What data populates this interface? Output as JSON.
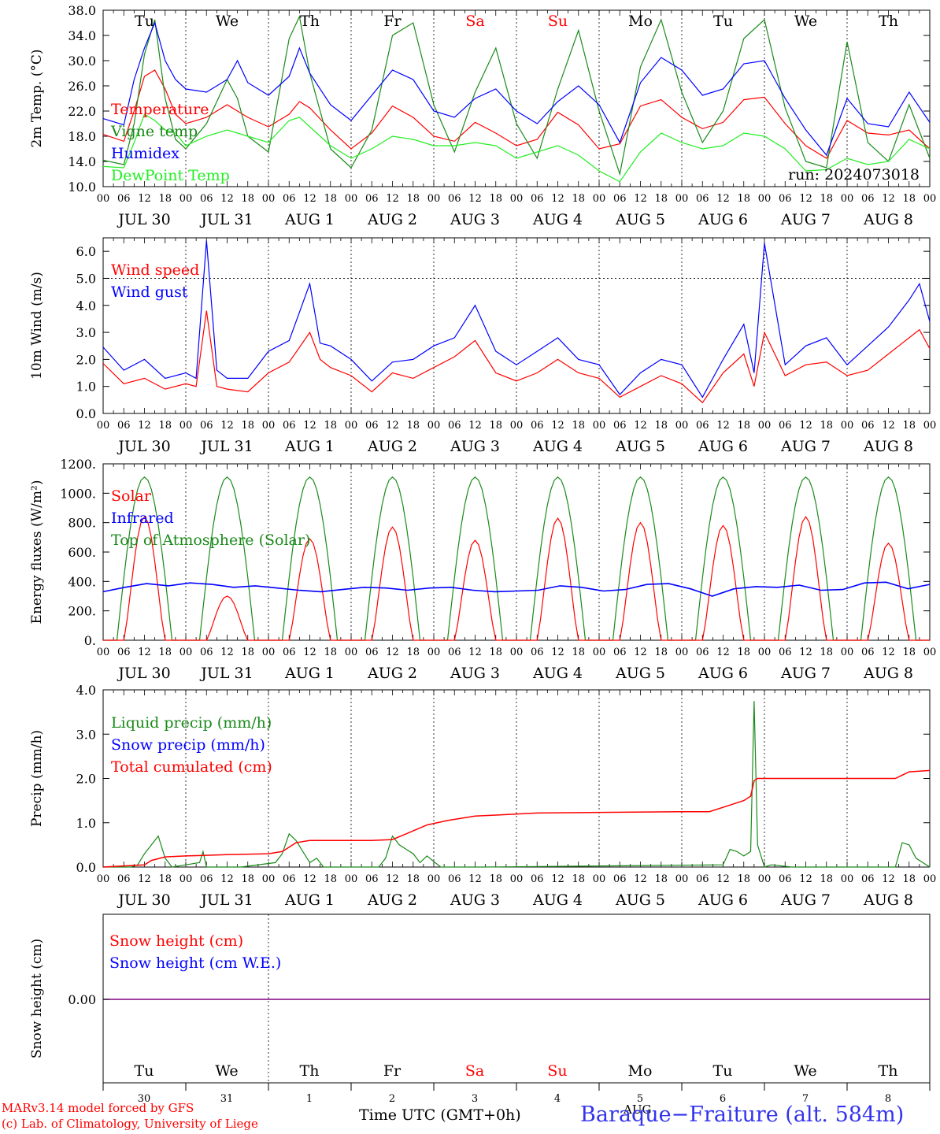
{
  "footer": {
    "credit_line1": "MARv3.14 model forced by GFS",
    "credit_line2": "(c) Lab. of Climatology, University of Liege",
    "xlabel": "Time UTC (GMT+0h)",
    "station": "Baraque−Fraiture (alt. 584m)",
    "month_label": "AUG"
  },
  "colors": {
    "red": "#ff0000",
    "green": "#1a8a1a",
    "blue": "#0000ff",
    "lightgreen": "#22ee22",
    "purple": "#800080"
  },
  "chart_data": [
    {
      "type": "line",
      "ylabel": "2m Temp. (°C)",
      "ylim": [
        10,
        38
      ],
      "yticks": [
        "10.0",
        "14.0",
        "18.0",
        "22.0",
        "26.0",
        "30.0",
        "34.0",
        "38.0"
      ],
      "ytick_values": [
        10,
        14,
        18,
        22,
        26,
        30,
        34,
        38
      ],
      "x_hour_ticks": [
        "00",
        "06",
        "12",
        "18"
      ],
      "day_labels": [
        "JUL 30",
        "JUL 31",
        "AUG  1",
        "AUG  2",
        "AUG  3",
        "AUG  4",
        "AUG  5",
        "AUG  6",
        "AUG  7",
        "AUG  8"
      ],
      "weekday_labels": [
        "Tu",
        "We",
        "Th",
        "Fr",
        "Sa",
        "Su",
        "Mo",
        "Tu",
        "We",
        "Th"
      ],
      "weekend_color": "#ff0000",
      "annotation": "run: 2024073018",
      "x": [
        0,
        6,
        9,
        12,
        15,
        18,
        21,
        24,
        30,
        36,
        39,
        42,
        48,
        54,
        57,
        60,
        66,
        72,
        78,
        84,
        90,
        96,
        102,
        108,
        114,
        120,
        126,
        132,
        138,
        144,
        150,
        156,
        162,
        168,
        174,
        180,
        186,
        192,
        198,
        204,
        210,
        216,
        222,
        228,
        234,
        240
      ],
      "series": [
        {
          "name": "Temperature",
          "color": "#ff0000",
          "values": [
            18.3,
            17.2,
            22,
            27.5,
            28.5,
            25.5,
            21.5,
            20,
            21,
            23,
            22,
            21,
            19.5,
            21.5,
            23.5,
            22.5,
            19,
            16,
            18.5,
            22.8,
            21,
            18,
            17.2,
            20.2,
            18.5,
            16.5,
            17.5,
            21.8,
            19.8,
            16,
            16.8,
            22.8,
            23.8,
            21,
            19.2,
            20.2,
            23.8,
            24.2,
            20,
            16.5,
            14.5,
            20.5,
            18.5,
            18.2,
            19,
            16
          ]
        },
        {
          "name": "Vigne temp",
          "color": "#1a8a1a",
          "values": [
            14.2,
            13.5,
            20,
            31,
            36.5,
            24,
            17.5,
            16,
            20,
            27,
            24,
            18,
            15.5,
            33.5,
            37,
            28,
            16,
            13,
            19,
            34,
            36,
            23,
            15.5,
            25,
            32,
            20,
            14.5,
            25.5,
            34.8,
            22,
            12,
            29,
            36.5,
            25,
            17,
            22,
            33.5,
            36.5,
            22.5,
            14,
            13,
            33,
            17,
            14,
            23,
            14.5
          ]
        },
        {
          "name": "Humidex",
          "color": "#0000ff",
          "values": [
            20.8,
            19.8,
            27,
            32,
            36,
            30,
            27,
            25.5,
            25,
            27,
            30,
            26.5,
            24.5,
            27.5,
            32,
            28,
            23,
            20.5,
            24.5,
            28.5,
            27,
            22,
            21,
            24,
            25.5,
            22,
            20,
            23.5,
            26,
            23,
            17,
            26.5,
            30.5,
            28.5,
            24.5,
            25.5,
            29.5,
            30,
            24,
            19,
            15,
            24,
            20,
            19.5,
            25,
            20.2
          ]
        },
        {
          "name": "DewPoint Temp",
          "color": "#22ee22",
          "values": [
            13.2,
            13,
            17,
            21.5,
            20.5,
            19,
            18.5,
            16.5,
            18,
            19,
            18.5,
            18,
            17,
            20.5,
            21,
            19.5,
            16.5,
            14.5,
            16,
            18,
            17.5,
            16.5,
            16.5,
            17,
            16.5,
            14.5,
            15.5,
            16.5,
            15,
            12.5,
            10.8,
            15.5,
            18.5,
            17,
            16,
            16.5,
            18.5,
            18,
            16,
            12.5,
            12.7,
            14.5,
            13.5,
            14,
            17.5,
            16
          ]
        }
      ]
    },
    {
      "type": "line",
      "ylabel": "10m Wind (m/s)",
      "ylim": [
        0,
        6.5
      ],
      "yticks": [
        "0.0",
        "1.0",
        "2.0",
        "3.0",
        "4.0",
        "5.0",
        "6.0"
      ],
      "ytick_values": [
        0,
        1,
        2,
        3,
        4,
        5,
        6
      ],
      "hline": 5.0,
      "x_hour_ticks": [
        "00",
        "06",
        "12",
        "18"
      ],
      "day_labels": [
        "JUL 30",
        "JUL 31",
        "AUG  1",
        "AUG  2",
        "AUG  3",
        "AUG  4",
        "AUG  5",
        "AUG  6",
        "AUG  7",
        "AUG  8"
      ],
      "x": [
        0,
        6,
        12,
        18,
        24,
        27,
        30,
        33,
        36,
        42,
        48,
        54,
        60,
        63,
        66,
        72,
        78,
        84,
        90,
        96,
        102,
        108,
        114,
        120,
        126,
        132,
        138,
        144,
        150,
        156,
        162,
        168,
        174,
        180,
        186,
        189,
        192,
        198,
        204,
        210,
        216,
        222,
        228,
        234,
        237,
        240
      ],
      "series": [
        {
          "name": "Wind speed",
          "color": "#ff0000",
          "values": [
            1.85,
            1.1,
            1.3,
            0.9,
            1.1,
            1.0,
            3.8,
            1.0,
            0.9,
            0.8,
            1.5,
            1.9,
            3.0,
            2.0,
            1.7,
            1.4,
            0.8,
            1.5,
            1.3,
            1.7,
            2.1,
            2.7,
            1.5,
            1.2,
            1.5,
            2.0,
            1.5,
            1.3,
            0.6,
            1.0,
            1.4,
            1.1,
            0.4,
            1.5,
            2.2,
            1.0,
            3.0,
            1.4,
            1.8,
            1.9,
            1.4,
            1.6,
            2.2,
            2.8,
            3.1,
            2.4
          ]
        },
        {
          "name": "Wind gust",
          "color": "#0000ff",
          "values": [
            2.45,
            1.6,
            2.0,
            1.3,
            1.5,
            1.3,
            6.4,
            1.6,
            1.3,
            1.3,
            2.3,
            2.7,
            4.8,
            2.6,
            2.5,
            2.0,
            1.2,
            1.9,
            2.0,
            2.5,
            2.8,
            4.0,
            2.3,
            1.8,
            2.3,
            2.8,
            2.0,
            1.8,
            0.7,
            1.5,
            2.0,
            1.8,
            0.6,
            2.0,
            3.3,
            1.5,
            6.3,
            1.8,
            2.5,
            2.8,
            1.8,
            2.5,
            3.2,
            4.2,
            4.8,
            3.4
          ]
        }
      ]
    },
    {
      "type": "line",
      "ylabel": "Energy fluxes (W/m²)",
      "ylim": [
        0,
        1200
      ],
      "yticks": [
        "0.",
        "200.",
        "400.",
        "600.",
        "800.",
        "1000.",
        "1200."
      ],
      "ytick_values": [
        0,
        200,
        400,
        600,
        800,
        1000,
        1200
      ],
      "x_hour_ticks": [
        "00",
        "06",
        "12",
        "18"
      ],
      "day_labels": [
        "JUL 30",
        "JUL 31",
        "AUG  1",
        "AUG  2",
        "AUG  3",
        "AUG  4",
        "AUG  5",
        "AUG  6",
        "AUG  7",
        "AUG  8"
      ],
      "solar_peaks": [
        840,
        300,
        690,
        770,
        680,
        830,
        800,
        780,
        840,
        660
      ],
      "toa_peak": 1110,
      "daylight_hours": [
        4,
        20
      ],
      "infrared_values": [
        330,
        360,
        385,
        370,
        390,
        380,
        360,
        370,
        355,
        340,
        330,
        345,
        360,
        355,
        340,
        355,
        360,
        340,
        330,
        335,
        340,
        370,
        360,
        335,
        345,
        380,
        385,
        350,
        300,
        350,
        365,
        360,
        375,
        340,
        345,
        390,
        395,
        350,
        380
      ],
      "series": [
        {
          "name": "Solar",
          "color": "#ff0000"
        },
        {
          "name": "Infrared",
          "color": "#0000ff"
        },
        {
          "name": "Top of Atmosphere (Solar)",
          "color": "#1a8a1a"
        }
      ]
    },
    {
      "type": "line",
      "ylabel": "Precip (mm/h)",
      "ylim": [
        0,
        4.0
      ],
      "yticks": [
        "0.0",
        "1.0",
        "2.0",
        "3.0",
        "4.0"
      ],
      "ytick_values": [
        0,
        1,
        2,
        3,
        4
      ],
      "x_hour_ticks": [
        "00",
        "06",
        "12",
        "18"
      ],
      "day_labels": [
        "JUL 30",
        "JUL 31",
        "AUG  1",
        "AUG  2",
        "AUG  3",
        "AUG  4",
        "AUG  5",
        "AUG  6",
        "AUG  7",
        "AUG  8"
      ],
      "series": [
        {
          "name": "Liquid precip (mm/h)",
          "color": "#1a8a1a",
          "x": [
            0,
            8,
            10,
            12,
            14,
            16,
            18,
            20,
            24,
            28,
            29,
            30,
            40,
            50,
            52,
            54,
            56,
            60,
            62,
            64,
            66,
            70,
            80,
            82,
            84,
            86,
            88,
            90,
            92,
            94,
            98,
            110,
            180,
            182,
            184,
            186,
            188,
            189,
            190,
            192,
            194,
            200,
            230,
            232,
            234,
            236,
            240
          ],
          "values": [
            0,
            0,
            0.05,
            0.3,
            0.5,
            0.7,
            0.2,
            0,
            0.05,
            0.1,
            0.35,
            0,
            0,
            0.1,
            0.3,
            0.75,
            0.6,
            0.1,
            0.2,
            0,
            0,
            0,
            0,
            0.2,
            0.7,
            0.5,
            0.4,
            0.3,
            0.1,
            0.25,
            0,
            0,
            0.05,
            0.4,
            0.35,
            0.25,
            0.35,
            3.75,
            0.5,
            0,
            0.05,
            0,
            0,
            0.55,
            0.5,
            0.2,
            0
          ]
        },
        {
          "name": "Snow precip (mm/h)",
          "color": "#0000ff",
          "values": []
        },
        {
          "name": "Total cumulated (cm)",
          "color": "#ff0000",
          "x": [
            0,
            12,
            14,
            18,
            24,
            36,
            48,
            52,
            54,
            56,
            60,
            66,
            72,
            78,
            84,
            88,
            94,
            100,
            108,
            126,
            168,
            176,
            182,
            186,
            188,
            189,
            190,
            192,
            230,
            234,
            240
          ],
          "values": [
            0,
            0.05,
            0.15,
            0.23,
            0.25,
            0.28,
            0.3,
            0.35,
            0.45,
            0.55,
            0.6,
            0.6,
            0.6,
            0.6,
            0.62,
            0.75,
            0.95,
            1.05,
            1.15,
            1.22,
            1.25,
            1.25,
            1.4,
            1.5,
            1.6,
            1.95,
            2.0,
            2.0,
            2.0,
            2.15,
            2.18
          ]
        }
      ]
    },
    {
      "type": "line",
      "ylabel": "Snow height (cm)",
      "yticks": [
        "0.00"
      ],
      "weekday_labels": [
        "Tu",
        "We",
        "Th",
        "Fr",
        "Sa",
        "Su",
        "Mo",
        "Tu",
        "We",
        "Th"
      ],
      "day_numbers": [
        "30",
        "31",
        "1",
        "2",
        "3",
        "4",
        "5",
        "6",
        "7",
        "8"
      ],
      "series": [
        {
          "name": "Snow height (cm)",
          "color": "#ff0000",
          "values": [
            0,
            0
          ]
        },
        {
          "name": "Snow height (cm W.E.)",
          "color": "#0000ff",
          "values": [
            0,
            0
          ]
        }
      ]
    }
  ]
}
